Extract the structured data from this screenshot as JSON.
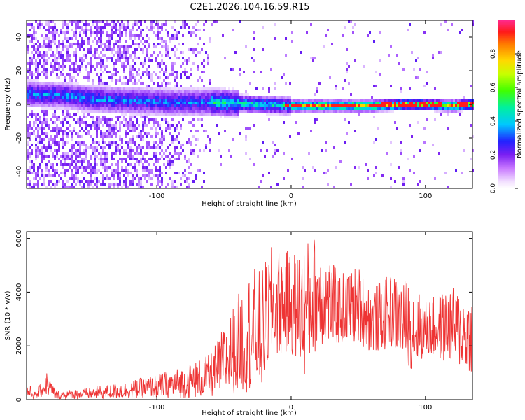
{
  "chart_data": [
    {
      "type": "heatmap",
      "title": "C2E1.2026.104.16.59.R15",
      "xlabel": "Height of straight line (km)",
      "ylabel": "Frequency (Hz)",
      "xlim": [
        -197,
        135
      ],
      "ylim": [
        -50,
        50
      ],
      "xticks": [
        -100,
        0,
        100
      ],
      "yticks": [
        -40,
        -20,
        0,
        20,
        40
      ],
      "colorbar": {
        "label": "Normalized spectral amplitude",
        "range": [
          0,
          1
        ],
        "ticks": [
          "0.0",
          "0.2",
          "0.4",
          "0.6",
          "0.8"
        ]
      },
      "ridge": {
        "description": "main spectral ridge near 0 Hz",
        "frequency_hz": [
          {
            "x": -197,
            "f": 7
          },
          {
            "x": -170,
            "f": 6
          },
          {
            "x": -150,
            "f": 4
          },
          {
            "x": -120,
            "f": 3
          },
          {
            "x": -90,
            "f": 2
          },
          {
            "x": -60,
            "f": 2
          },
          {
            "x": -30,
            "f": 1
          },
          {
            "x": 0,
            "f": 0
          },
          {
            "x": 30,
            "f": 0
          },
          {
            "x": 60,
            "f": 0
          },
          {
            "x": 90,
            "f": 1
          },
          {
            "x": 120,
            "f": 0
          },
          {
            "x": 135,
            "f": 1
          }
        ]
      }
    },
    {
      "type": "line",
      "xlabel": "Height of straight line (km)",
      "ylabel": "SNR (10 * v/v)",
      "xlim": [
        -197,
        135
      ],
      "ylim": [
        0,
        6250
      ],
      "xticks": [
        -100,
        0,
        100
      ],
      "yticks": [
        0,
        2000,
        4000,
        6000
      ],
      "series_color": "#ee3333",
      "envelope": [
        {
          "x": -197,
          "lo": 40,
          "hi": 700
        },
        {
          "x": -190,
          "lo": 30,
          "hi": 250
        },
        {
          "x": -182,
          "lo": 150,
          "hi": 1050
        },
        {
          "x": -175,
          "lo": 20,
          "hi": 330
        },
        {
          "x": -150,
          "lo": 20,
          "hi": 450
        },
        {
          "x": -120,
          "lo": 40,
          "hi": 700
        },
        {
          "x": -100,
          "lo": 60,
          "hi": 950
        },
        {
          "x": -80,
          "lo": 60,
          "hi": 1250
        },
        {
          "x": -60,
          "lo": 80,
          "hi": 1700
        },
        {
          "x": -45,
          "lo": 200,
          "hi": 3300
        },
        {
          "x": -30,
          "lo": 300,
          "hi": 5000
        },
        {
          "x": -22,
          "lo": 300,
          "hi": 4800
        },
        {
          "x": -15,
          "lo": 1500,
          "hi": 5700
        },
        {
          "x": 0,
          "lo": 1700,
          "hi": 5500
        },
        {
          "x": 10,
          "lo": 800,
          "hi": 5900
        },
        {
          "x": 20,
          "lo": 2000,
          "hi": 6250
        },
        {
          "x": 35,
          "lo": 2000,
          "hi": 4700
        },
        {
          "x": 50,
          "lo": 2100,
          "hi": 5000
        },
        {
          "x": 60,
          "lo": 1700,
          "hi": 4200
        },
        {
          "x": 75,
          "lo": 1900,
          "hi": 4700
        },
        {
          "x": 90,
          "lo": 1100,
          "hi": 4400
        },
        {
          "x": 100,
          "lo": 1600,
          "hi": 3700
        },
        {
          "x": 120,
          "lo": 1300,
          "hi": 4200
        },
        {
          "x": 135,
          "lo": 900,
          "hi": 3900
        }
      ]
    }
  ]
}
